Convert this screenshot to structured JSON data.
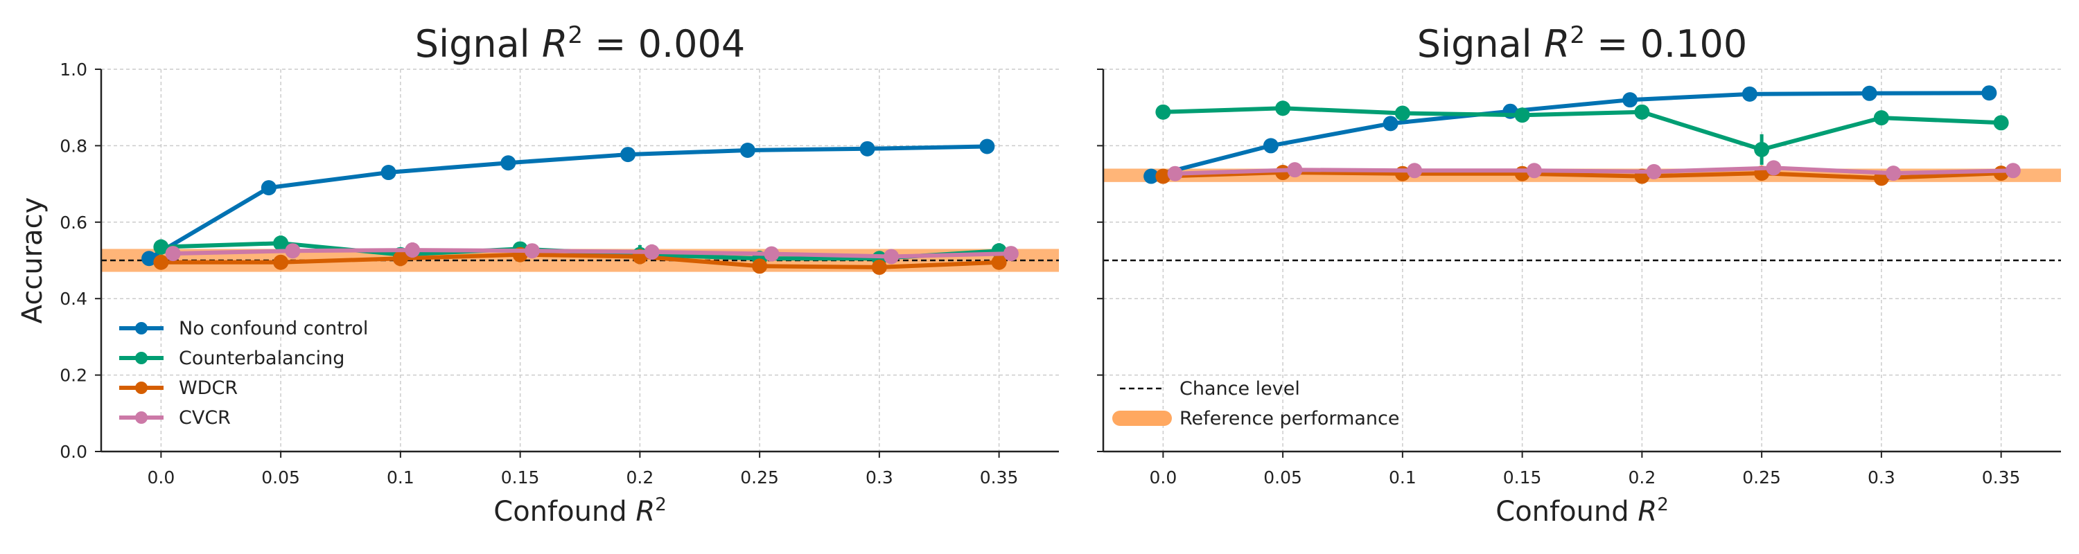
{
  "chart_data": [
    {
      "type": "line",
      "title": "Signal R² = 0.004",
      "title_parts": {
        "prefix": "Signal ",
        "symbol": "R",
        "sup": "2",
        "suffix": " = 0.004"
      },
      "xlabel_parts": {
        "prefix": "Confound ",
        "symbol": "R",
        "sup": "2"
      },
      "ylabel": "Accuracy",
      "xlim": [
        -0.025,
        0.375
      ],
      "ylim": [
        0.0,
        1.0
      ],
      "xticks": [
        "0.0",
        "0.05",
        "0.1",
        "0.15",
        "0.2",
        "0.25",
        "0.3",
        "0.35"
      ],
      "xtick_values": [
        0.0,
        0.05,
        0.1,
        0.15,
        0.2,
        0.25,
        0.3,
        0.35
      ],
      "yticks": [
        "0.0",
        "0.2",
        "0.4",
        "0.6",
        "0.8",
        "1.0"
      ],
      "ytick_values": [
        0.0,
        0.2,
        0.4,
        0.6,
        0.8,
        1.0
      ],
      "show_yticklabels": true,
      "grid": true,
      "legend": "lower-left",
      "chance_level": 0.5,
      "reference_performance": [
        0.47,
        0.53
      ],
      "series": [
        {
          "name": "No confound control",
          "color": "#0072b2",
          "x": [
            -0.005,
            0.045,
            0.095,
            0.145,
            0.195,
            0.245,
            0.295,
            0.345
          ],
          "y": [
            0.505,
            0.69,
            0.73,
            0.755,
            0.777,
            0.788,
            0.792,
            0.798
          ],
          "err": [
            0,
            0,
            0,
            0,
            0,
            0,
            0,
            0
          ]
        },
        {
          "name": "Counterbalancing",
          "color": "#009e73",
          "x": [
            0.0,
            0.05,
            0.1,
            0.15,
            0.2,
            0.25,
            0.3,
            0.35
          ],
          "y": [
            0.535,
            0.545,
            0.515,
            0.53,
            0.515,
            0.505,
            0.505,
            0.525
          ],
          "err": [
            0.02,
            0.02,
            0.015,
            0.015,
            0.025,
            0.02,
            0.015,
            0.02
          ]
        },
        {
          "name": "WDCR",
          "color": "#d55e00",
          "x": [
            0.0,
            0.05,
            0.1,
            0.15,
            0.2,
            0.25,
            0.3,
            0.35
          ],
          "y": [
            0.495,
            0.495,
            0.505,
            0.515,
            0.51,
            0.485,
            0.482,
            0.495
          ],
          "err": [
            0.015,
            0.015,
            0.02,
            0.015,
            0.02,
            0.015,
            0.015,
            0.015
          ]
        },
        {
          "name": "CVCR",
          "color": "#cc79a7",
          "x": [
            0.005,
            0.055,
            0.105,
            0.155,
            0.205,
            0.255,
            0.305,
            0.355
          ],
          "y": [
            0.518,
            0.525,
            0.527,
            0.525,
            0.522,
            0.517,
            0.51,
            0.518
          ],
          "err": [
            0.015,
            0.015,
            0.02,
            0.015,
            0.02,
            0.015,
            0.015,
            0.015
          ]
        }
      ]
    },
    {
      "type": "line",
      "title": "Signal R² = 0.100",
      "title_parts": {
        "prefix": "Signal ",
        "symbol": "R",
        "sup": "2",
        "suffix": " = 0.100"
      },
      "xlabel_parts": {
        "prefix": "Confound ",
        "symbol": "R",
        "sup": "2"
      },
      "ylabel": "",
      "xlim": [
        -0.025,
        0.375
      ],
      "ylim": [
        0.0,
        1.0
      ],
      "xticks": [
        "0.0",
        "0.05",
        "0.1",
        "0.15",
        "0.2",
        "0.25",
        "0.3",
        "0.35"
      ],
      "xtick_values": [
        0.0,
        0.05,
        0.1,
        0.15,
        0.2,
        0.25,
        0.3,
        0.35
      ],
      "yticks": [
        "",
        "",
        "",
        "",
        "",
        ""
      ],
      "ytick_values": [
        0.0,
        0.2,
        0.4,
        0.6,
        0.8,
        1.0
      ],
      "show_yticklabels": false,
      "grid": true,
      "legend": "lower-left",
      "chance_level": 0.5,
      "reference_performance": [
        0.705,
        0.74
      ],
      "series": [
        {
          "name": "No confound control",
          "color": "#0072b2",
          "x": [
            -0.005,
            0.045,
            0.095,
            0.145,
            0.195,
            0.245,
            0.295,
            0.345
          ],
          "y": [
            0.72,
            0.8,
            0.858,
            0.89,
            0.92,
            0.935,
            0.937,
            0.938
          ],
          "err": [
            0,
            0,
            0,
            0,
            0,
            0,
            0,
            0
          ]
        },
        {
          "name": "Counterbalancing",
          "color": "#009e73",
          "x": [
            0.0,
            0.05,
            0.1,
            0.15,
            0.2,
            0.25,
            0.3,
            0.35
          ],
          "y": [
            0.888,
            0.898,
            0.885,
            0.88,
            0.888,
            0.79,
            0.873,
            0.86
          ],
          "err": [
            0.01,
            0.01,
            0.01,
            0.01,
            0.01,
            0.04,
            0.01,
            0.01
          ]
        },
        {
          "name": "WDCR",
          "color": "#d55e00",
          "x": [
            0.0,
            0.05,
            0.1,
            0.15,
            0.2,
            0.25,
            0.3,
            0.35
          ],
          "y": [
            0.72,
            0.73,
            0.727,
            0.727,
            0.72,
            0.728,
            0.715,
            0.728
          ],
          "err": [
            0.01,
            0.015,
            0.012,
            0.012,
            0.012,
            0.015,
            0.012,
            0.012
          ]
        },
        {
          "name": "CVCR",
          "color": "#cc79a7",
          "x": [
            0.005,
            0.055,
            0.105,
            0.155,
            0.205,
            0.255,
            0.305,
            0.355
          ],
          "y": [
            0.727,
            0.737,
            0.735,
            0.735,
            0.732,
            0.742,
            0.728,
            0.735
          ],
          "err": [
            0.01,
            0.012,
            0.012,
            0.012,
            0.012,
            0.012,
            0.012,
            0.012
          ]
        }
      ]
    }
  ],
  "legends": {
    "methods": [
      {
        "label": "No confound control",
        "color": "#0072b2"
      },
      {
        "label": "Counterbalancing",
        "color": "#009e73"
      },
      {
        "label": "WDCR",
        "color": "#d55e00"
      },
      {
        "label": "CVCR",
        "color": "#cc79a7"
      }
    ],
    "references": [
      {
        "label": "Chance level",
        "color": "#111111"
      },
      {
        "label": "Reference performance",
        "color": "#ffa860"
      }
    ]
  },
  "colors": {
    "reference_band": "#ffa860",
    "chance_line": "#111111",
    "grid": "#cccccc",
    "axis": "#222222"
  }
}
